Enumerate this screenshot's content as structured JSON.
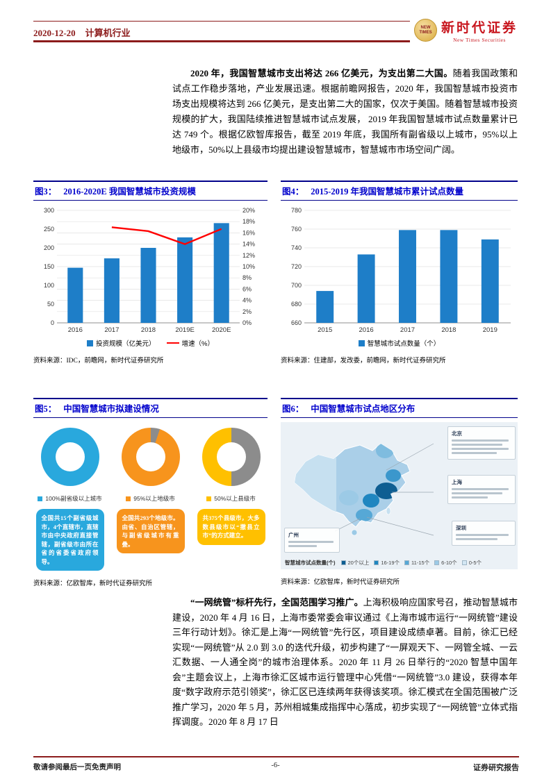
{
  "header": {
    "date": "2020-12-20",
    "industry": "计算机行业",
    "brand_cn": "新时代证券",
    "brand_en": "New Times Securities",
    "seal1": "NEW",
    "seal2": "TIMES",
    "accent_color": "#8C1B1B"
  },
  "paragraphs": {
    "p1_lead": "2020 年，我国智慧城市支出将达 266 亿美元，为支出第二大国。",
    "p1_body": "随着我国政策和试点工作稳步落地，产业发展迅速。根据前瞻网报告，2020 年，我国智慧城市投资市场支出规模将达到 266 亿美元，是支出第二大的国家，仅次于美国。随着智慧城市投资规模的扩大，我国陆续推进智慧城市试点发展， 2019 年我国智慧城市试点数量累计已达 749 个。根据亿欧智库报告，截至 2019 年底，我国所有副省级以上城市，95%以上地级市，50%以上县级市均提出建设智慧城市，智慧城市市场空间广阔。",
    "p2_lead": "“一网统管”标杆先行，全国范围学习推广。",
    "p2_body": "上海积极响应国家号召，推动智慧城市建设，2020 年 4 月 16 日，上海市委常委会审议通过《上海市城市运行“一网统管”建设三年行动计划》。徐汇是上海“一网统管”先行区，项目建设成绩卓著。目前，徐汇已经实现“一网统管”从 2.0 到 3.0 的迭代升级，初步构建了“一屏观天下、一网管全城、一云汇数据、一人通全岗”的城市治理体系。2020 年 11 月 26 日举行的“2020 智慧中国年会”主题会议上，上海市徐汇区城市运行管理中心凭借“一网统管”3.0 建设，获得本年度“数字政府示范引领奖”，徐汇区已连续两年获得该奖项。徐汇模式在全国范围被广泛推广学习，2020 年 5 月，苏州相城集成指挥中心落成，初步实现了“一网统管”立体式指挥调度。2020 年 8 月 17 日"
  },
  "figures": {
    "fig3": {
      "label": "图3：",
      "title": "2016-2020E 我国智慧城市投资规模",
      "source": "资料来源：IDC，前瞻网，新时代证券研究所"
    },
    "fig4": {
      "label": "图4：",
      "title": "2015-2019 年我国智慧城市累计试点数量",
      "source": "资料来源：住建部，发改委，前瞻网，新时代证券研究所"
    },
    "fig5": {
      "label": "图5：",
      "title": "中国智慧城市拟建设情况",
      "source": "资料来源：亿欧智库，新时代证券研究所"
    },
    "fig6": {
      "label": "图6：",
      "title": "中国智慧城市试点地区分布",
      "source": "资料来源：亿欧智库，新时代证券研究所"
    }
  },
  "footer": {
    "left": "敬请参阅最后一页免责声明",
    "page": "-6-",
    "right": "证券研究报告"
  },
  "chart_data": [
    {
      "id": "fig3",
      "type": "bar",
      "title": "2016-2020E 我国智慧城市投资规模",
      "categories": [
        "2016",
        "2017",
        "2018",
        "2019E",
        "2020E"
      ],
      "series": [
        {
          "name": "投资规模（亿美元）",
          "type": "bar",
          "values": [
            147,
            172,
            200,
            228,
            266
          ],
          "color": "#1E7EC8",
          "axis": "left"
        },
        {
          "name": "增速（%）",
          "type": "line",
          "values": [
            null,
            17.0,
            16.3,
            14.0,
            16.7
          ],
          "color": "#FF0000",
          "axis": "right"
        }
      ],
      "left_axis": {
        "min": 0,
        "max": 300,
        "step": 50
      },
      "right_axis": {
        "min": 0,
        "max": 20,
        "step": 2,
        "suffix": "%"
      },
      "grid": true,
      "legend_position": "bottom"
    },
    {
      "id": "fig4",
      "type": "bar",
      "title": "2015-2019 年我国智慧城市累计试点数量",
      "categories": [
        "2015",
        "2016",
        "2017",
        "2018",
        "2019"
      ],
      "series": [
        {
          "name": "智慧城市试点数量（个）",
          "type": "bar",
          "values": [
            694,
            733,
            759,
            759,
            749
          ],
          "color": "#1E7EC8",
          "axis": "left"
        }
      ],
      "left_axis": {
        "min": 660,
        "max": 780,
        "step": 20
      },
      "grid": true,
      "legend_position": "bottom"
    },
    {
      "id": "fig5",
      "type": "pie",
      "rest_color": "#8C8C8C",
      "donuts": [
        {
          "percent": 100,
          "color": "#29A8DD",
          "label": "100%副省级以上城市",
          "box": "全国共15个副省级城市，4个直辖市，直辖市由中央政府直接管辖，副省级市由所在省的省委省政府领导。"
        },
        {
          "percent": 95,
          "color": "#F7941D",
          "label": "95%以上地级市",
          "box": "全国共293个地级市。由省、自治区管辖，与副省级城市有重叠。"
        },
        {
          "percent": 50,
          "color": "#FFC000",
          "label": "50%以上县级市",
          "box": "共375个县级市，大多数县级市以“撤县立市”的方式建立。"
        }
      ]
    },
    {
      "id": "fig6",
      "type": "heatmap",
      "legend_title": "智慧城市试点数量(个)",
      "legend": [
        {
          "label": "20个以上",
          "color": "#0E5E92"
        },
        {
          "label": "16-19个",
          "color": "#1F86C0"
        },
        {
          "label": "11-15个",
          "color": "#56A8D6"
        },
        {
          "label": "6-10个",
          "color": "#9CCAE6"
        },
        {
          "label": "0-5个",
          "color": "#D3E7F4"
        }
      ],
      "callouts": [
        {
          "city": "北京"
        },
        {
          "city": "上海"
        },
        {
          "city": "广州"
        },
        {
          "city": "深圳"
        }
      ]
    }
  ]
}
